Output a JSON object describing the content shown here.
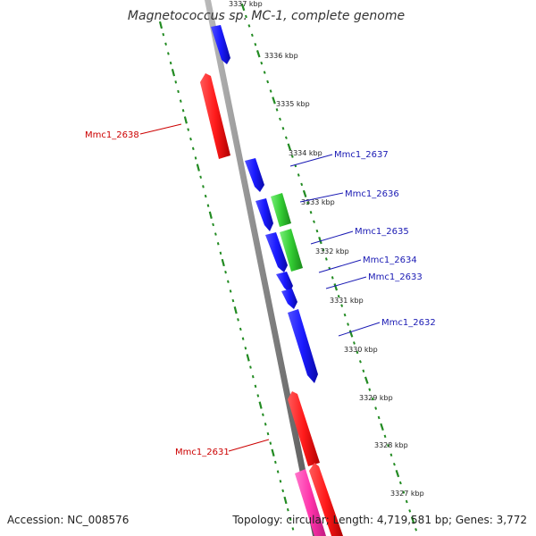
{
  "title": "Magnetococcus sp. MC-1, complete genome",
  "accession": "Accession: NC_008576",
  "summary": "Topology: circular; Length: 4,719,581 bp; Genes: 3,772",
  "colors": {
    "forward_gene": "#1a1aff",
    "reverse_gene": "#ff1a1a",
    "rna_gene": "#33cc33",
    "pink_gene": "#ff33aa",
    "ticks": "#228b22",
    "backbone": "#888888",
    "label_forward": "#1a1ab4",
    "label_reverse": "#cc0000"
  },
  "kbp_ticks": [
    "3337 kbp",
    "3336 kbp",
    "3335 kbp",
    "3334 kbp",
    "3333 kbp",
    "3332 kbp",
    "3331 kbp",
    "3330 kbp",
    "3329 kbp",
    "3328 kbp",
    "3327 kbp"
  ],
  "gene_labels": [
    {
      "text": "Mmc1_2637",
      "strand": "forward"
    },
    {
      "text": "Mmc1_2636",
      "strand": "forward"
    },
    {
      "text": "Mmc1_2635",
      "strand": "forward"
    },
    {
      "text": "Mmc1_2634",
      "strand": "forward"
    },
    {
      "text": "Mmc1_2633",
      "strand": "forward"
    },
    {
      "text": "Mmc1_2632",
      "strand": "forward"
    },
    {
      "text": "Mmc1_2638",
      "strand": "reverse"
    },
    {
      "text": "Mmc1_2631",
      "strand": "reverse"
    }
  ]
}
